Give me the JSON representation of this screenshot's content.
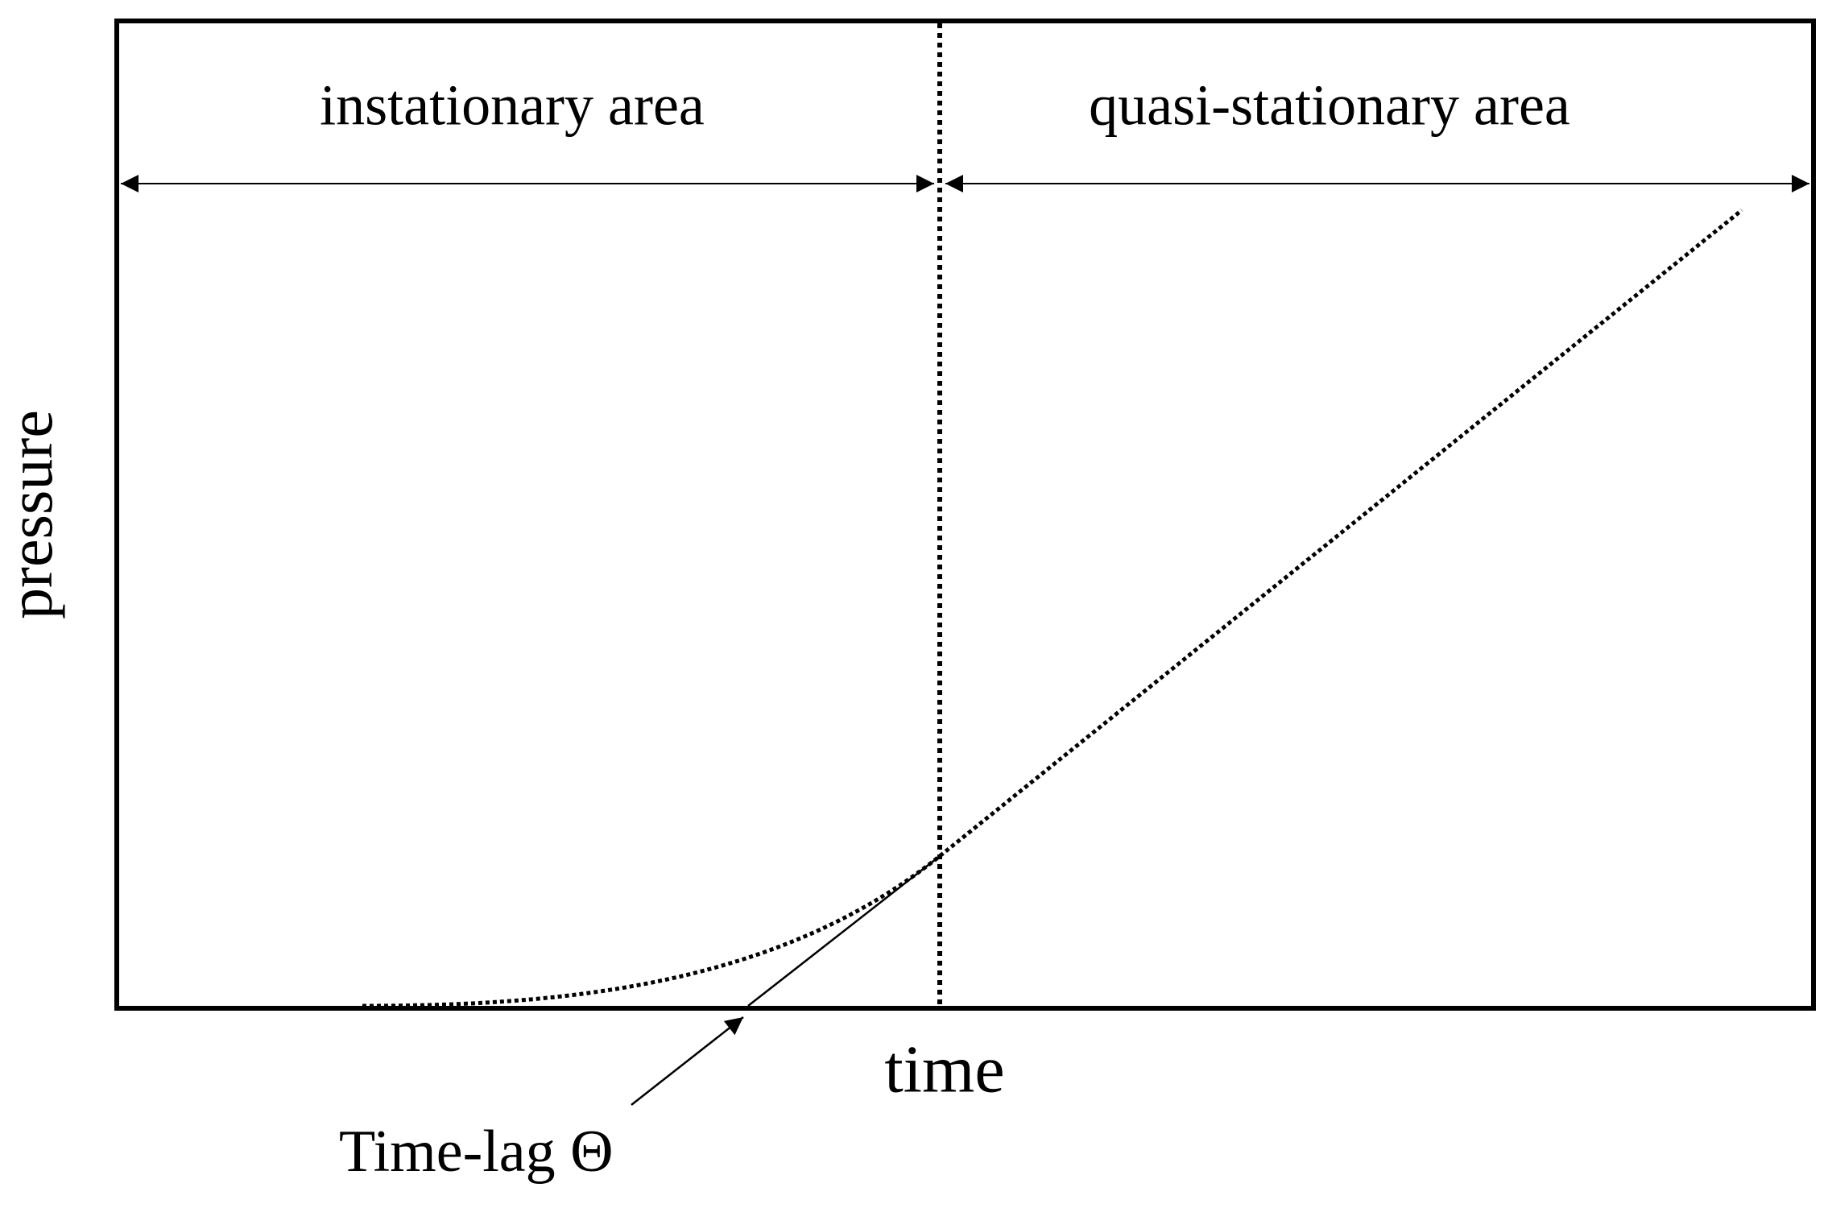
{
  "regions": {
    "left": "instationary area",
    "right": "quasi-stationary area"
  },
  "axes": {
    "y": "pressure",
    "x": "time"
  },
  "annotation": "Time-lag Θ"
}
